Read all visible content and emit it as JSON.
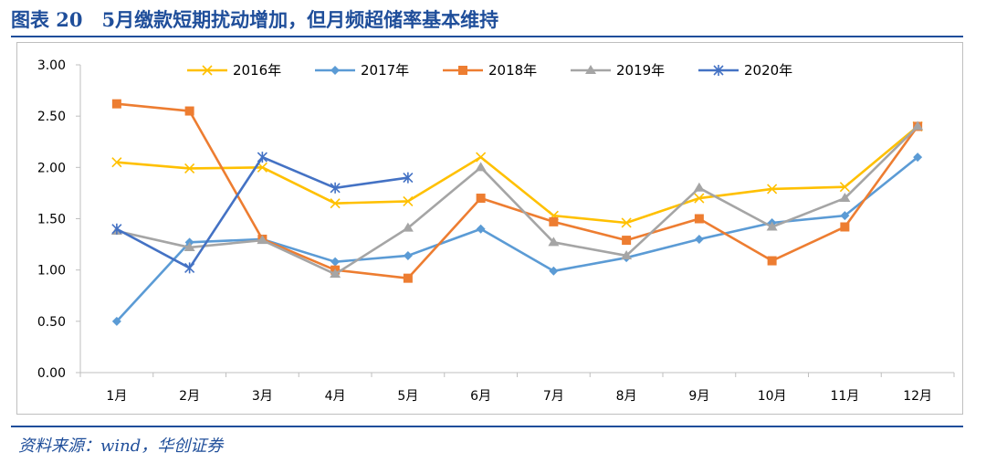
{
  "figure": {
    "title": "图表 20　5月缴款短期扰动增加，但月频超储率基本维持",
    "source": "资料来源：wind，华创证券"
  },
  "chart_data": {
    "type": "line",
    "title": "",
    "xlabel": "",
    "ylabel": "",
    "categories": [
      "1月",
      "2月",
      "3月",
      "4月",
      "5月",
      "6月",
      "7月",
      "8月",
      "9月",
      "10月",
      "11月",
      "12月"
    ],
    "ylim": [
      0,
      3
    ],
    "yticks": [
      "0.00",
      "0.50",
      "1.00",
      "1.50",
      "2.00",
      "2.50",
      "3.00"
    ],
    "grid": false,
    "legend": "top",
    "series": [
      {
        "name": "2016年",
        "color": "#FFC000",
        "marker": "x",
        "values": [
          2.05,
          1.99,
          2.0,
          1.65,
          1.67,
          2.1,
          1.53,
          1.46,
          1.7,
          1.79,
          1.81,
          2.4
        ]
      },
      {
        "name": "2017年",
        "color": "#5B9BD5",
        "marker": "diamond",
        "values": [
          0.5,
          1.27,
          1.3,
          1.08,
          1.14,
          1.4,
          0.99,
          1.12,
          1.3,
          1.46,
          1.53,
          2.1
        ]
      },
      {
        "name": "2018年",
        "color": "#ED7D31",
        "marker": "square",
        "values": [
          2.62,
          2.55,
          1.3,
          1.0,
          0.92,
          1.7,
          1.47,
          1.29,
          1.5,
          1.09,
          1.42,
          2.4
        ]
      },
      {
        "name": "2019年",
        "color": "#A5A5A5",
        "marker": "triangle",
        "values": [
          1.38,
          1.22,
          1.29,
          0.96,
          1.41,
          2.0,
          1.27,
          1.14,
          1.8,
          1.42,
          1.7,
          2.4
        ]
      },
      {
        "name": "2020年",
        "color": "#4472C4",
        "marker": "star",
        "values": [
          1.4,
          1.02,
          2.1,
          1.8,
          1.9,
          null,
          null,
          null,
          null,
          null,
          null,
          null
        ]
      }
    ]
  }
}
